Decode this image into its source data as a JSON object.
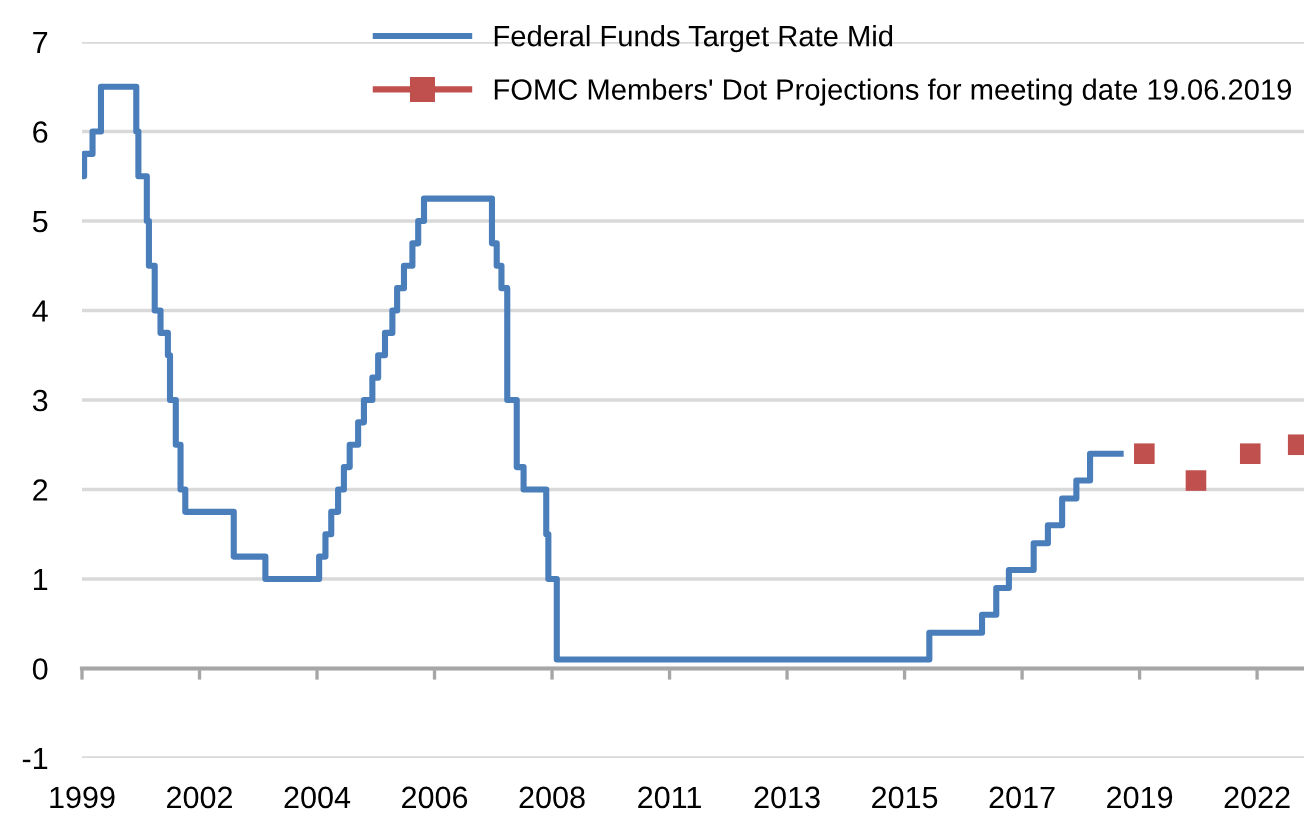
{
  "chart_data": {
    "type": "step",
    "xlim": [
      1999.4,
      2022.59
    ],
    "xticks": [
      {
        "value": 1999.4,
        "label": "1999"
      },
      {
        "value": 2001.63,
        "label": "2002"
      },
      {
        "value": 2003.86,
        "label": "2004"
      },
      {
        "value": 2006.09,
        "label": "2006"
      },
      {
        "value": 2008.32,
        "label": "2008"
      },
      {
        "value": 2010.55,
        "label": "2011"
      },
      {
        "value": 2012.78,
        "label": "2013"
      },
      {
        "value": 2015.01,
        "label": "2015"
      },
      {
        "value": 2017.24,
        "label": "2017"
      },
      {
        "value": 2019.47,
        "label": "2019"
      },
      {
        "value": 2021.7,
        "label": "2022"
      }
    ],
    "ylim": [
      -1,
      7
    ],
    "yticks": [
      -1,
      0,
      1,
      2,
      3,
      4,
      5,
      6,
      7
    ],
    "grid": "y",
    "legend": "top right",
    "series": [
      {
        "name": "Federal Funds Target Rate Mid",
        "color": "#4a7ebb",
        "marker": "none",
        "x": [
          1999.4,
          1999.44,
          1999.6,
          1999.76,
          2000.43,
          2000.47,
          2000.63,
          2000.67,
          2000.78,
          2000.89,
          2001.03,
          2001.07,
          2001.18,
          2001.27,
          2001.36,
          2002.28,
          2002.88,
          2003.9,
          2004.02,
          2004.13,
          2004.26,
          2004.37,
          2004.48,
          2004.64,
          2004.75,
          2004.91,
          2005.02,
          2005.15,
          2005.29,
          2005.38,
          2005.51,
          2005.67,
          2005.78,
          2005.89,
          2007.18,
          2007.27,
          2007.36,
          2007.47,
          2007.65,
          2007.78,
          2008.21,
          2008.25,
          2008.41,
          2015.48,
          2016.48,
          2016.75,
          2016.99,
          2017.46,
          2017.73,
          2018.0,
          2018.27,
          2018.53,
          2019.11
        ],
        "values": [
          5.5,
          5.75,
          6.0,
          6.5,
          6.0,
          5.5,
          5.0,
          4.5,
          4.0,
          3.75,
          3.5,
          3.0,
          2.5,
          2.0,
          1.75,
          1.25,
          1.0,
          1.25,
          1.5,
          1.75,
          2.0,
          2.25,
          2.5,
          2.75,
          3.0,
          3.25,
          3.5,
          3.75,
          4.0,
          4.25,
          4.5,
          4.75,
          5.0,
          5.25,
          4.75,
          4.5,
          4.25,
          3.0,
          2.25,
          2.0,
          1.5,
          1.0,
          0.1,
          0.4,
          0.6,
          0.9,
          1.1,
          1.4,
          1.6,
          1.9,
          2.1,
          2.4,
          2.4
        ]
      },
      {
        "name": "FOMC Members' Dot Projections for meeting date 19.06.2019",
        "type": "scatter",
        "color": "#c0504d",
        "marker": "square",
        "x": [
          2019.56,
          2020.54,
          2021.57,
          2022.48
        ],
        "values": [
          2.4,
          2.1,
          2.4,
          2.5
        ]
      }
    ]
  }
}
